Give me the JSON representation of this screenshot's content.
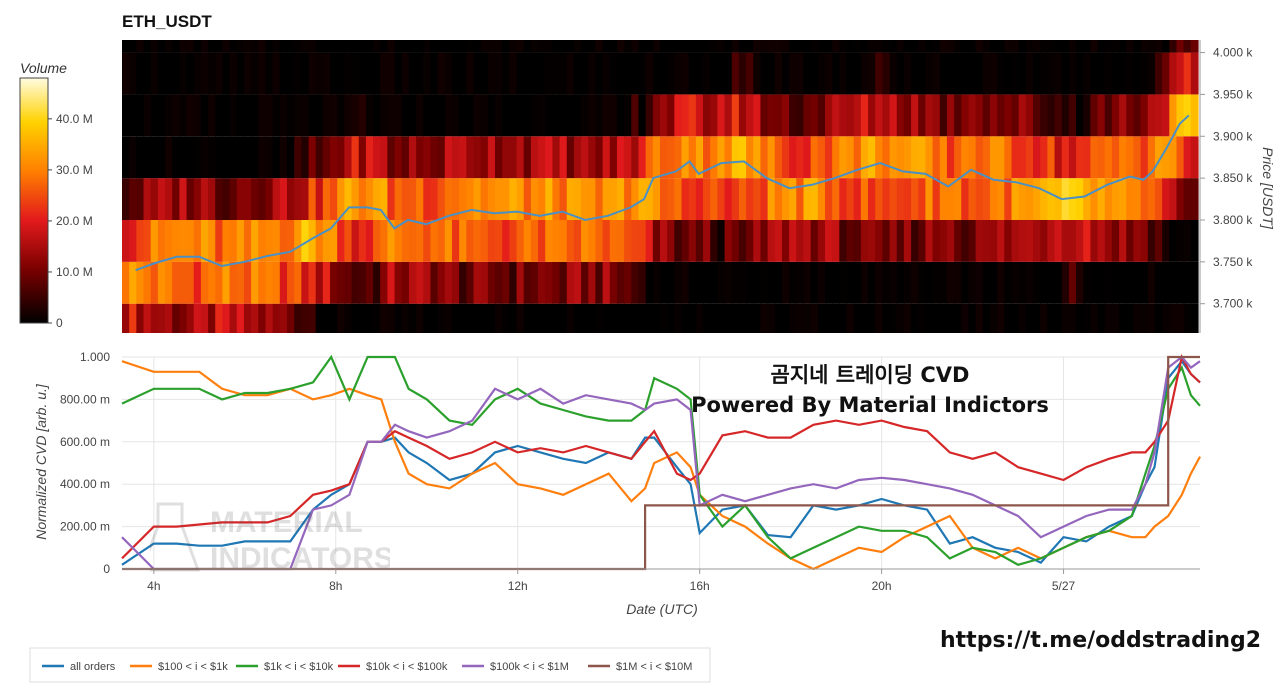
{
  "title": "ETH_USDT",
  "colorbar": {
    "title": "Volume",
    "ticks": [
      "0",
      "10.0 M",
      "20.0 M",
      "30.0 M",
      "40.0 M"
    ]
  },
  "headline": {
    "line1": "곰지네 트레이딩 CVD",
    "line2": "Powered By Material Indictors"
  },
  "watermark": {
    "line1": "MATERIAL",
    "line2": "INDICATORS"
  },
  "link": "https://t.me/oddstrading2",
  "colors": {
    "all_orders": "#1f77b4",
    "b100_1k": "#ff7f0e",
    "b1k_10k": "#2ca02c",
    "b10k_100k": "#d62728",
    "b100k_1M": "#9467bd",
    "b1M_10M": "#8c564b"
  },
  "chart_data": [
    {
      "type": "heatmap",
      "title": "ETH_USDT",
      "ylabel": "Price [USDT]",
      "ylim": [
        3665,
        4015
      ],
      "yticks": [
        "3.700 k",
        "3.750 k",
        "3.800 k",
        "3.850 k",
        "3.900 k",
        "3.950 k",
        "4.000 k"
      ],
      "price_levels": [
        3675,
        3725,
        3775,
        3825,
        3875,
        3925,
        3975,
        4010
      ],
      "volume_range_M": [
        0,
        48
      ],
      "price_line": {
        "x_hours": [
          3.6,
          4.0,
          4.5,
          5.0,
          5.5,
          6.0,
          6.5,
          7.0,
          7.5,
          7.9,
          8.3,
          8.7,
          9.0,
          9.3,
          9.6,
          10.0,
          10.5,
          11.0,
          11.5,
          12.0,
          12.5,
          13.0,
          13.5,
          14.0,
          14.5,
          14.8,
          15.0,
          15.5,
          15.8,
          16.0,
          16.5,
          17.0,
          17.5,
          18.0,
          18.5,
          19.0,
          19.5,
          20.0,
          20.5,
          21.0,
          21.5,
          22.0,
          22.5,
          23.0,
          23.5,
          24.0,
          24.5,
          25.0,
          25.5,
          25.8,
          26.0,
          26.3,
          26.6,
          26.8
        ],
        "y_price": [
          3740,
          3748,
          3756,
          3756,
          3745,
          3750,
          3757,
          3762,
          3778,
          3790,
          3815,
          3815,
          3812,
          3790,
          3800,
          3795,
          3805,
          3812,
          3808,
          3810,
          3805,
          3810,
          3800,
          3805,
          3815,
          3825,
          3850,
          3858,
          3870,
          3855,
          3868,
          3870,
          3850,
          3838,
          3842,
          3850,
          3860,
          3868,
          3858,
          3855,
          3840,
          3860,
          3848,
          3845,
          3838,
          3825,
          3828,
          3842,
          3852,
          3848,
          3858,
          3885,
          3915,
          3925
        ]
      }
    },
    {
      "type": "line",
      "xlabel": "Date (UTC)",
      "ylabel": "Normalized CVD [arb. u.]",
      "xticks": [
        "4h",
        "8h",
        "12h",
        "16h",
        "20h",
        "5/27"
      ],
      "xtick_hours": [
        4,
        8,
        12,
        16,
        20,
        24
      ],
      "xlim_hours": [
        3.3,
        27.0
      ],
      "ylim": [
        0,
        1
      ],
      "yticks": [
        "0",
        "200.00 m",
        "400.00 m",
        "600.00 m",
        "800.00 m",
        "1.000"
      ],
      "x_hours": [
        3.3,
        4.0,
        4.5,
        5.0,
        5.5,
        6.0,
        6.5,
        7.0,
        7.5,
        7.9,
        8.3,
        8.7,
        9.0,
        9.3,
        9.6,
        10.0,
        10.5,
        11.0,
        11.5,
        12.0,
        12.5,
        13.0,
        13.5,
        14.0,
        14.5,
        14.8,
        15.0,
        15.5,
        15.8,
        16.0,
        16.5,
        17.0,
        17.5,
        18.0,
        18.5,
        19.0,
        19.5,
        20.0,
        20.5,
        21.0,
        21.5,
        22.0,
        22.5,
        23.0,
        23.5,
        24.0,
        24.5,
        25.0,
        25.5,
        25.8,
        26.0,
        26.3,
        26.6,
        26.8,
        27.0
      ],
      "series": [
        {
          "name": "all orders",
          "values": [
            0.02,
            0.12,
            0.12,
            0.11,
            0.11,
            0.13,
            0.13,
            0.13,
            0.28,
            0.35,
            0.4,
            0.6,
            0.6,
            0.62,
            0.55,
            0.5,
            0.42,
            0.45,
            0.55,
            0.58,
            0.55,
            0.52,
            0.5,
            0.55,
            0.52,
            0.62,
            0.62,
            0.48,
            0.4,
            0.17,
            0.28,
            0.3,
            0.16,
            0.15,
            0.3,
            0.28,
            0.3,
            0.33,
            0.3,
            0.28,
            0.12,
            0.15,
            0.1,
            0.08,
            0.03,
            0.15,
            0.13,
            0.2,
            0.25,
            0.4,
            0.48,
            0.9,
            0.98,
            0.92,
            0.88
          ]
        },
        {
          "name": "$100 < i < $1k",
          "values": [
            0.98,
            0.93,
            0.93,
            0.93,
            0.85,
            0.82,
            0.82,
            0.85,
            0.8,
            0.82,
            0.85,
            0.82,
            0.8,
            0.6,
            0.45,
            0.4,
            0.38,
            0.45,
            0.5,
            0.4,
            0.38,
            0.35,
            0.4,
            0.45,
            0.32,
            0.38,
            0.5,
            0.55,
            0.48,
            0.35,
            0.25,
            0.2,
            0.12,
            0.05,
            0.0,
            0.05,
            0.1,
            0.08,
            0.15,
            0.2,
            0.25,
            0.1,
            0.05,
            0.1,
            0.05,
            0.1,
            0.15,
            0.18,
            0.15,
            0.15,
            0.2,
            0.25,
            0.35,
            0.45,
            0.53
          ]
        },
        {
          "name": "$1k < i < $10k",
          "values": [
            0.78,
            0.85,
            0.85,
            0.85,
            0.8,
            0.83,
            0.83,
            0.85,
            0.88,
            1.0,
            0.8,
            1.0,
            1.0,
            1.0,
            0.85,
            0.8,
            0.7,
            0.68,
            0.8,
            0.85,
            0.78,
            0.75,
            0.72,
            0.7,
            0.7,
            0.75,
            0.9,
            0.85,
            0.8,
            0.35,
            0.2,
            0.3,
            0.15,
            0.05,
            0.1,
            0.15,
            0.2,
            0.18,
            0.18,
            0.15,
            0.05,
            0.1,
            0.08,
            0.02,
            0.05,
            0.1,
            0.15,
            0.18,
            0.25,
            0.45,
            0.58,
            0.85,
            0.95,
            0.82,
            0.77
          ]
        },
        {
          "name": "$10k < i < $100k",
          "values": [
            0.05,
            0.2,
            0.2,
            0.21,
            0.22,
            0.22,
            0.22,
            0.25,
            0.35,
            0.37,
            0.4,
            0.6,
            0.6,
            0.65,
            0.62,
            0.58,
            0.52,
            0.55,
            0.6,
            0.55,
            0.57,
            0.55,
            0.58,
            0.55,
            0.52,
            0.6,
            0.65,
            0.45,
            0.42,
            0.45,
            0.63,
            0.65,
            0.62,
            0.62,
            0.68,
            0.7,
            0.68,
            0.7,
            0.67,
            0.65,
            0.55,
            0.52,
            0.55,
            0.48,
            0.45,
            0.42,
            0.48,
            0.52,
            0.55,
            0.55,
            0.6,
            0.7,
            1.0,
            0.92,
            0.88
          ]
        },
        {
          "name": "$100k < i < $1M",
          "values": [
            0.15,
            0.0,
            0.0,
            0.0,
            0.0,
            0.0,
            0.0,
            0.0,
            0.28,
            0.3,
            0.35,
            0.6,
            0.6,
            0.68,
            0.65,
            0.62,
            0.65,
            0.7,
            0.85,
            0.8,
            0.85,
            0.78,
            0.82,
            0.8,
            0.78,
            0.75,
            0.78,
            0.8,
            0.75,
            0.3,
            0.35,
            0.32,
            0.35,
            0.38,
            0.4,
            0.38,
            0.42,
            0.43,
            0.42,
            0.4,
            0.38,
            0.35,
            0.3,
            0.25,
            0.15,
            0.2,
            0.25,
            0.28,
            0.28,
            0.4,
            0.55,
            0.95,
            1.0,
            0.95,
            0.98
          ]
        },
        {
          "name": "$1M < i < $10M",
          "values": [
            0,
            0,
            0,
            0,
            0,
            0,
            0,
            0,
            0,
            0,
            0,
            0,
            0,
            0,
            0,
            0,
            0,
            0,
            0,
            0,
            0,
            0,
            0,
            0,
            0,
            0.3,
            0.3,
            0.3,
            0.3,
            0.3,
            0.3,
            0.3,
            0.3,
            0.3,
            0.3,
            0.3,
            0.3,
            0.3,
            0.3,
            0.3,
            0.3,
            0.3,
            0.3,
            0.3,
            0.3,
            0.3,
            0.3,
            0.3,
            0.3,
            0.3,
            0.3,
            1.0,
            1.0,
            1.0,
            1.0
          ]
        }
      ],
      "legend_position": "bottom-left"
    }
  ]
}
